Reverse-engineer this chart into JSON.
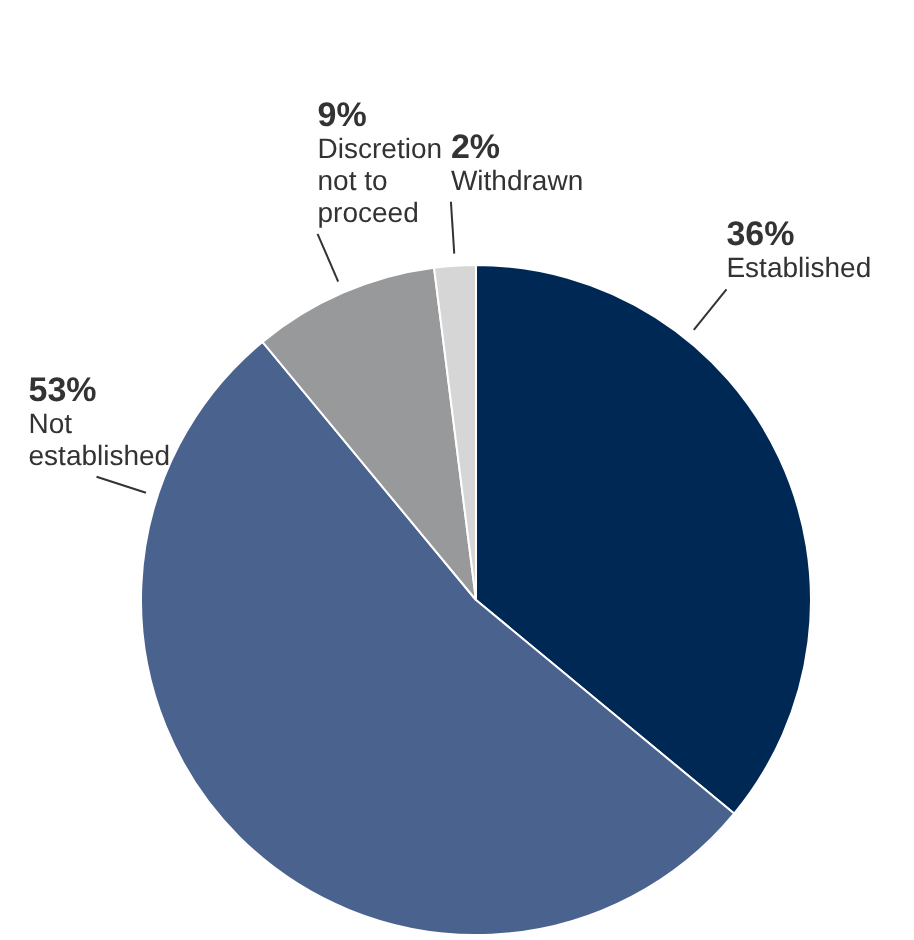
{
  "chart_data": {
    "type": "pie",
    "categories": [
      "Established",
      "Not established",
      "Discretion not to proceed",
      "Withdrawn"
    ],
    "values": [
      36,
      53,
      9,
      2
    ],
    "value_labels": [
      "36%",
      "53%",
      "9%",
      "2%"
    ],
    "colors": [
      "#002855",
      "#4a628e",
      "#97999b",
      "#d6d6d6"
    ],
    "legend": false
  }
}
